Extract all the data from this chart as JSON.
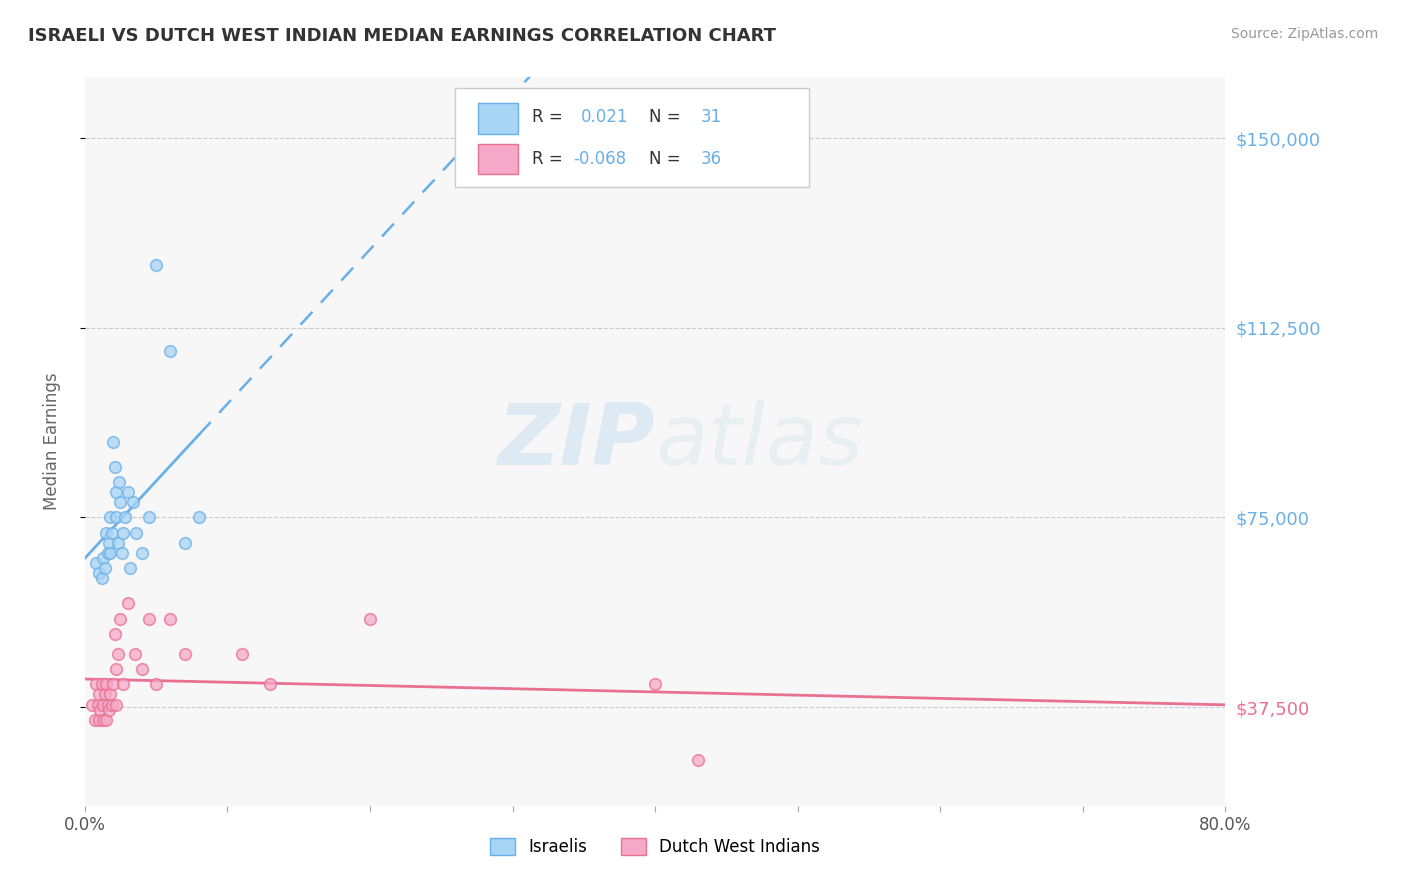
{
  "title": "ISRAELI VS DUTCH WEST INDIAN MEDIAN EARNINGS CORRELATION CHART",
  "source": "Source: ZipAtlas.com",
  "watermark": "ZIPatlas",
  "ylabel": "Median Earnings",
  "xlim": [
    0.0,
    0.8
  ],
  "ylim": [
    18000,
    162000
  ],
  "yticks": [
    37500,
    75000,
    112500,
    150000
  ],
  "ytick_labels": [
    "$37,500",
    "$75,000",
    "$112,500",
    "$150,000"
  ],
  "ytick_colors": [
    "#e87090",
    "#6ab0e8",
    "#6ab0e8",
    "#6ab0e8"
  ],
  "xticks": [
    0.0,
    0.1,
    0.2,
    0.3,
    0.4,
    0.5,
    0.6,
    0.7,
    0.8
  ],
  "xtick_labels": [
    "0.0%",
    "",
    "",
    "",
    "",
    "",
    "",
    "",
    "80.0%"
  ],
  "israeli_color": "#a8d4f5",
  "dutch_color": "#f5a8c8",
  "israeli_line_color": "#6ab0e8",
  "dutch_line_color": "#e87090",
  "background_color": "#ffffff",
  "plot_bg_color": "#f7f7f7",
  "grid_color": "#e0e0e0",
  "title_color": "#333333",
  "axis_label_color": "#666666",
  "israeli_scatter_x": [
    0.008,
    0.01,
    0.012,
    0.013,
    0.014,
    0.015,
    0.016,
    0.017,
    0.018,
    0.018,
    0.019,
    0.02,
    0.021,
    0.022,
    0.022,
    0.023,
    0.024,
    0.025,
    0.026,
    0.027,
    0.028,
    0.03,
    0.032,
    0.034,
    0.036,
    0.04,
    0.045,
    0.05,
    0.06,
    0.07,
    0.08
  ],
  "israeli_scatter_y": [
    66000,
    64000,
    63000,
    67000,
    65000,
    72000,
    68000,
    70000,
    75000,
    68000,
    72000,
    90000,
    85000,
    80000,
    75000,
    70000,
    82000,
    78000,
    68000,
    72000,
    75000,
    80000,
    65000,
    78000,
    72000,
    68000,
    75000,
    125000,
    108000,
    70000,
    75000
  ],
  "dutch_scatter_x": [
    0.005,
    0.007,
    0.008,
    0.009,
    0.01,
    0.01,
    0.011,
    0.012,
    0.013,
    0.013,
    0.014,
    0.015,
    0.015,
    0.016,
    0.017,
    0.018,
    0.019,
    0.02,
    0.021,
    0.022,
    0.022,
    0.023,
    0.025,
    0.027,
    0.03,
    0.035,
    0.04,
    0.045,
    0.05,
    0.06,
    0.07,
    0.11,
    0.13,
    0.2,
    0.4,
    0.43
  ],
  "dutch_scatter_y": [
    38000,
    35000,
    42000,
    38000,
    40000,
    35000,
    37000,
    42000,
    38000,
    35000,
    40000,
    42000,
    35000,
    38000,
    37000,
    40000,
    38000,
    42000,
    52000,
    45000,
    38000,
    48000,
    55000,
    42000,
    58000,
    48000,
    45000,
    55000,
    42000,
    55000,
    48000,
    48000,
    42000,
    55000,
    42000,
    27000
  ],
  "scatter_size": 70,
  "scatter_alpha": 0.75
}
